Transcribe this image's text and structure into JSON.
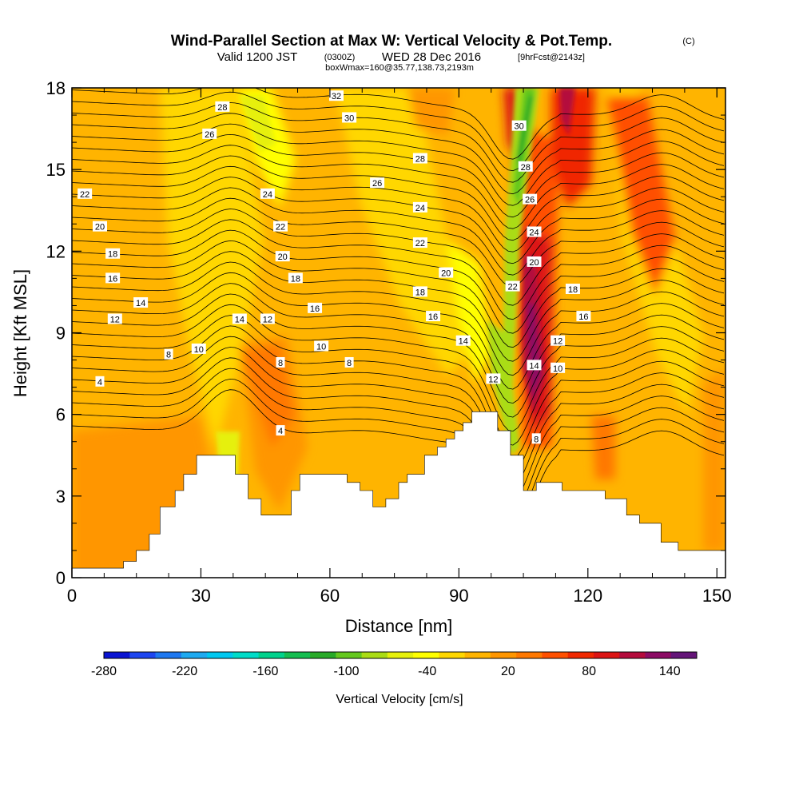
{
  "chart_data": {
    "type": "heatmap",
    "title": "Wind-Parallel Section at Max W: Vertical Velocity & Pot.Temp.",
    "title_mark": "(C)",
    "subtitle_main": "Valid 1200 JST",
    "subtitle_zulu": "(0300Z)",
    "subtitle_date": "WED 28 Dec 2016",
    "subtitle_fcst": "[9hrFcst@2143z]",
    "subtitle2": "boxWmax=160@35.77,138.73,2193m",
    "xlabel": "Distance [nm]",
    "ylabel": "Height [Kft MSL]",
    "xlim": [
      0,
      152
    ],
    "ylim": [
      0,
      18
    ],
    "xticks": [
      "0",
      "30",
      "60",
      "90",
      "120",
      "150"
    ],
    "xtick_values": [
      0,
      30,
      60,
      90,
      120,
      150
    ],
    "yticks": [
      "0",
      "3",
      "6",
      "9",
      "12",
      "15",
      "18"
    ],
    "ytick_values": [
      0,
      3,
      6,
      9,
      12,
      15,
      18
    ],
    "colorbar": {
      "label": "Vertical Velocity [cm/s]",
      "min": -280,
      "max": 160,
      "tick_labels": [
        "-280",
        "-220",
        "-160",
        "-100",
        "-40",
        "20",
        "80",
        "140"
      ],
      "tick_values": [
        -280,
        -220,
        -160,
        -100,
        -40,
        20,
        80,
        140
      ],
      "colors": [
        "#0a14d2",
        "#1e46f0",
        "#1e78f0",
        "#1eaaf0",
        "#00c8f0",
        "#00dcc8",
        "#00d28c",
        "#14be50",
        "#28aa28",
        "#64c81e",
        "#aadc14",
        "#e6f00a",
        "#ffff00",
        "#ffd700",
        "#ffb400",
        "#ff9600",
        "#ff7800",
        "#ff5000",
        "#f02800",
        "#dc1414",
        "#b40a3c",
        "#8c0a64",
        "#641478"
      ]
    },
    "terrain_top_kft": [
      [
        0,
        0.35
      ],
      [
        12,
        0.35
      ],
      [
        12,
        0.6
      ],
      [
        15,
        0.6
      ],
      [
        15,
        1.0
      ],
      [
        18,
        1.0
      ],
      [
        18,
        1.6
      ],
      [
        20.5,
        1.6
      ],
      [
        20.5,
        2.6
      ],
      [
        24,
        2.6
      ],
      [
        24,
        3.2
      ],
      [
        26,
        3.2
      ],
      [
        26,
        3.8
      ],
      [
        29,
        3.8
      ],
      [
        29,
        4.5
      ],
      [
        38,
        4.5
      ],
      [
        38,
        3.8
      ],
      [
        41,
        3.8
      ],
      [
        41,
        2.9
      ],
      [
        44,
        2.9
      ],
      [
        44,
        2.3
      ],
      [
        51,
        2.3
      ],
      [
        51,
        3.2
      ],
      [
        53,
        3.2
      ],
      [
        53,
        3.8
      ],
      [
        64,
        3.8
      ],
      [
        64,
        3.5
      ],
      [
        67,
        3.5
      ],
      [
        67,
        3.2
      ],
      [
        70,
        3.2
      ],
      [
        70,
        2.6
      ],
      [
        73,
        2.6
      ],
      [
        73,
        2.9
      ],
      [
        76,
        2.9
      ],
      [
        76,
        3.5
      ],
      [
        78,
        3.5
      ],
      [
        78,
        3.8
      ],
      [
        82,
        3.8
      ],
      [
        82,
        4.5
      ],
      [
        85,
        4.5
      ],
      [
        85,
        4.8
      ],
      [
        87,
        4.8
      ],
      [
        87,
        5.1
      ],
      [
        89,
        5.1
      ],
      [
        89,
        5.4
      ],
      [
        91,
        5.4
      ],
      [
        91,
        5.7
      ],
      [
        93,
        5.7
      ],
      [
        93,
        6.1
      ],
      [
        99,
        6.1
      ],
      [
        99,
        5.4
      ],
      [
        102,
        5.4
      ],
      [
        102,
        4.5
      ],
      [
        105,
        4.5
      ],
      [
        105,
        3.2
      ],
      [
        108,
        3.2
      ],
      [
        108,
        3.5
      ],
      [
        114,
        3.5
      ],
      [
        114,
        3.2
      ],
      [
        124,
        3.2
      ],
      [
        124,
        2.9
      ],
      [
        129,
        2.9
      ],
      [
        129,
        2.3
      ],
      [
        132,
        2.3
      ],
      [
        132,
        2.0
      ],
      [
        137,
        2.0
      ],
      [
        137,
        1.3
      ],
      [
        141,
        1.3
      ],
      [
        141,
        1.0
      ],
      [
        145,
        1.0
      ],
      [
        145,
        1.0
      ],
      [
        152,
        1.0
      ]
    ],
    "theta_contour_labels": [
      {
        "label": "4",
        "x": 6.5,
        "y": 7.2
      },
      {
        "label": "8",
        "x": 22.5,
        "y": 8.2
      },
      {
        "label": "10",
        "x": 29.5,
        "y": 8.4
      },
      {
        "label": "12",
        "x": 10,
        "y": 9.5
      },
      {
        "label": "14",
        "x": 16,
        "y": 10.1
      },
      {
        "label": "16",
        "x": 9.5,
        "y": 11.0
      },
      {
        "label": "18",
        "x": 9.5,
        "y": 11.9
      },
      {
        "label": "20",
        "x": 6.5,
        "y": 12.9
      },
      {
        "label": "22",
        "x": 3,
        "y": 14.1
      },
      {
        "label": "26",
        "x": 32,
        "y": 16.3
      },
      {
        "label": "28",
        "x": 35,
        "y": 17.3
      },
      {
        "label": "32",
        "x": 61.5,
        "y": 17.7
      },
      {
        "label": "30",
        "x": 64.5,
        "y": 16.9
      },
      {
        "label": "28",
        "x": 81,
        "y": 15.4
      },
      {
        "label": "26",
        "x": 71,
        "y": 14.5
      },
      {
        "label": "24",
        "x": 45.5,
        "y": 14.1
      },
      {
        "label": "24",
        "x": 81,
        "y": 13.6
      },
      {
        "label": "22",
        "x": 48.5,
        "y": 12.9
      },
      {
        "label": "22",
        "x": 81,
        "y": 12.3
      },
      {
        "label": "20",
        "x": 49,
        "y": 11.8
      },
      {
        "label": "20",
        "x": 87,
        "y": 11.2
      },
      {
        "label": "18",
        "x": 52,
        "y": 11.0
      },
      {
        "label": "18",
        "x": 81,
        "y": 10.5
      },
      {
        "label": "16",
        "x": 56.5,
        "y": 9.9
      },
      {
        "label": "16",
        "x": 84,
        "y": 9.6
      },
      {
        "label": "14",
        "x": 39,
        "y": 9.5
      },
      {
        "label": "12",
        "x": 45.5,
        "y": 9.5
      },
      {
        "label": "14",
        "x": 91,
        "y": 8.7
      },
      {
        "label": "10",
        "x": 58,
        "y": 8.5
      },
      {
        "label": "8",
        "x": 48.5,
        "y": 7.9
      },
      {
        "label": "8",
        "x": 64.5,
        "y": 7.9
      },
      {
        "label": "4",
        "x": 48.5,
        "y": 5.4
      },
      {
        "label": "12",
        "x": 98,
        "y": 7.3
      },
      {
        "label": "14",
        "x": 107.5,
        "y": 7.8
      },
      {
        "label": "10",
        "x": 113,
        "y": 7.7
      },
      {
        "label": "12",
        "x": 113,
        "y": 8.7
      },
      {
        "label": "16",
        "x": 119,
        "y": 9.6
      },
      {
        "label": "18",
        "x": 116.5,
        "y": 10.6
      },
      {
        "label": "20",
        "x": 107.5,
        "y": 11.6
      },
      {
        "label": "22",
        "x": 102.5,
        "y": 10.7
      },
      {
        "label": "24",
        "x": 107.5,
        "y": 12.7
      },
      {
        "label": "26",
        "x": 106.5,
        "y": 13.9
      },
      {
        "label": "28",
        "x": 105.5,
        "y": 15.1
      },
      {
        "label": "30",
        "x": 104,
        "y": 16.6
      },
      {
        "label": "8",
        "x": 108,
        "y": 5.1
      }
    ]
  }
}
